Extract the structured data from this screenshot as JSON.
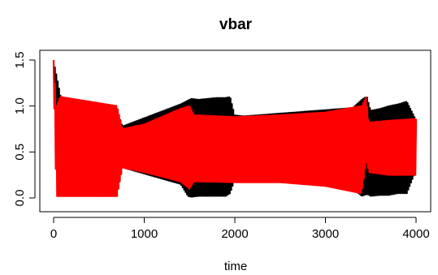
{
  "chart_data": {
    "type": "line",
    "title": "vbar",
    "xlabel": "time",
    "ylabel": "",
    "xlim": [
      0,
      4000
    ],
    "ylim": [
      0,
      1.5
    ],
    "x_ticks": [
      0,
      1000,
      2000,
      3000,
      4000
    ],
    "y_ticks": [
      0.0,
      0.5,
      1.0,
      1.5
    ],
    "x_tick_labels": [
      "0",
      "1000",
      "2000",
      "3000",
      "4000"
    ],
    "y_tick_labels": [
      "0.0",
      "0.5",
      "1.0",
      "1.5"
    ],
    "grid": false,
    "legend": "none",
    "series": [
      {
        "color": "#000000",
        "note_style": "dense oscillation, drawn underneath",
        "envelope": {
          "x": [
            0,
            100,
            700,
            760,
            1400,
            1480,
            1520,
            1600,
            1700,
            1800,
            1900,
            1950,
            2000,
            2100,
            3300,
            3400,
            3430,
            3460,
            3500,
            3600,
            3700,
            3800,
            3900,
            4000
          ],
          "high": [
            1.5,
            1.0,
            0.97,
            0.78,
            1.02,
            1.06,
            1.08,
            1.07,
            1.08,
            1.09,
            1.09,
            1.1,
            0.9,
            0.89,
            0.98,
            1.07,
            1.09,
            1.1,
            0.95,
            0.97,
            1.0,
            1.02,
            1.05,
            0.85
          ],
          "low": [
            1.05,
            0.02,
            0.02,
            0.33,
            0.15,
            0.02,
            0.01,
            0.02,
            0.02,
            0.02,
            0.02,
            0.05,
            0.2,
            0.22,
            0.1,
            0.02,
            0.03,
            0.04,
            0.02,
            0.03,
            0.03,
            0.05,
            0.05,
            0.3
          ]
        }
      },
      {
        "color": "#ff0000",
        "note_style": "dense oscillation, drawn on top",
        "envelope": {
          "x": [
            0,
            30,
            70,
            700,
            760,
            1000,
            1400,
            1500,
            1550,
            2000,
            2500,
            3000,
            3400,
            3450,
            3480,
            3700,
            4000
          ],
          "high": [
            1.5,
            1.0,
            1.1,
            1.0,
            0.75,
            0.8,
            0.97,
            1.0,
            0.9,
            0.88,
            0.9,
            0.93,
            1.0,
            1.1,
            0.82,
            0.84,
            0.86
          ],
          "low": [
            1.3,
            0.02,
            0.02,
            0.02,
            0.33,
            0.28,
            0.18,
            0.1,
            0.18,
            0.17,
            0.17,
            0.13,
            0.05,
            0.4,
            0.28,
            0.25,
            0.25
          ]
        }
      }
    ]
  }
}
